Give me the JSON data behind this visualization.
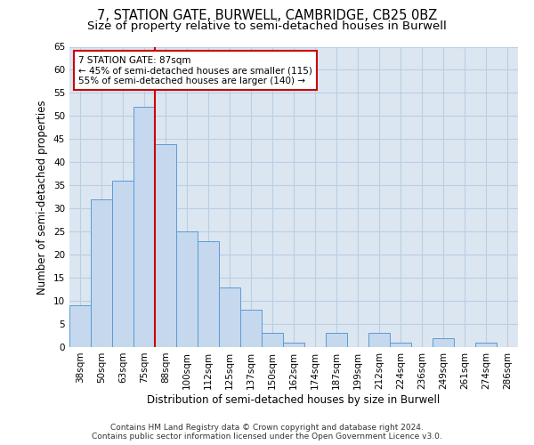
{
  "title": "7, STATION GATE, BURWELL, CAMBRIDGE, CB25 0BZ",
  "subtitle": "Size of property relative to semi-detached houses in Burwell",
  "xlabel": "Distribution of semi-detached houses by size in Burwell",
  "ylabel": "Number of semi-detached properties",
  "categories": [
    "38sqm",
    "50sqm",
    "63sqm",
    "75sqm",
    "88sqm",
    "100sqm",
    "112sqm",
    "125sqm",
    "137sqm",
    "150sqm",
    "162sqm",
    "174sqm",
    "187sqm",
    "199sqm",
    "212sqm",
    "224sqm",
    "236sqm",
    "249sqm",
    "261sqm",
    "274sqm",
    "286sqm"
  ],
  "values": [
    9,
    32,
    36,
    52,
    44,
    25,
    23,
    13,
    8,
    3,
    1,
    0,
    3,
    0,
    3,
    1,
    0,
    2,
    0,
    1,
    0
  ],
  "bar_color": "#c5d8ed",
  "bar_edge_color": "#5b9bd5",
  "grid_color": "#b8cfe4",
  "background_color": "#dce6f1",
  "vline_index": 3.5,
  "marker_label": "7 STATION GATE: 87sqm",
  "annotation_line1": "← 45% of semi-detached houses are smaller (115)",
  "annotation_line2": "55% of semi-detached houses are larger (140) →",
  "annotation_box_color": "#ffffff",
  "annotation_box_edge_color": "#cc0000",
  "vline_color": "#cc0000",
  "ylim": [
    0,
    65
  ],
  "yticks": [
    0,
    5,
    10,
    15,
    20,
    25,
    30,
    35,
    40,
    45,
    50,
    55,
    60,
    65
  ],
  "footnote1": "Contains HM Land Registry data © Crown copyright and database right 2024.",
  "footnote2": "Contains public sector information licensed under the Open Government Licence v3.0.",
  "title_fontsize": 10.5,
  "subtitle_fontsize": 9.5,
  "xlabel_fontsize": 8.5,
  "ylabel_fontsize": 8.5,
  "tick_fontsize": 7.5,
  "annotation_fontsize": 7.5,
  "footnote_fontsize": 6.5
}
